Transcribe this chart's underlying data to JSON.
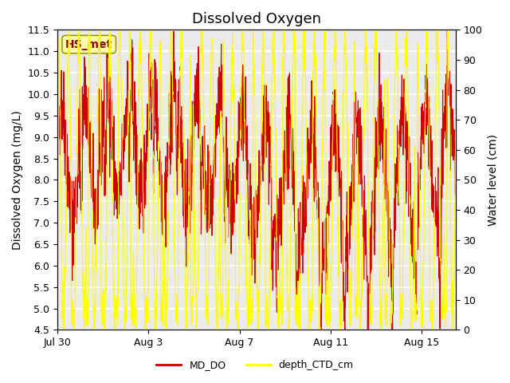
{
  "title": "Dissolved Oxygen",
  "ylabel_left": "Dissolved Oxygen (mg/L)",
  "ylabel_right": "Water level (cm)",
  "ylim_left": [
    4.5,
    11.5
  ],
  "ylim_right": [
    0,
    100
  ],
  "xlim_days": [
    0,
    17.5
  ],
  "xtick_positions": [
    0,
    4,
    8,
    12,
    16
  ],
  "xtick_labels": [
    "Jul 30",
    "Aug 3",
    "Aug 7",
    "Aug 11",
    "Aug 15"
  ],
  "yticks_left": [
    4.5,
    5.0,
    5.5,
    6.0,
    6.5,
    7.0,
    7.5,
    8.0,
    8.5,
    9.0,
    9.5,
    10.0,
    10.5,
    11.0,
    11.5
  ],
  "yticks_right": [
    0,
    10,
    20,
    30,
    40,
    50,
    60,
    70,
    80,
    90,
    100
  ],
  "color_do": "#cc0000",
  "color_depth": "#ffff00",
  "legend_label_do": "MD_DO",
  "legend_label_depth": "depth_CTD_cm",
  "annotation_text": "HS_met",
  "annotation_color": "#8b0000",
  "annotation_bg": "#ffffaa",
  "plot_bg": "#ebebeb",
  "grid_color": "#ffffff",
  "title_fontsize": 13,
  "label_fontsize": 10,
  "tick_fontsize": 9
}
